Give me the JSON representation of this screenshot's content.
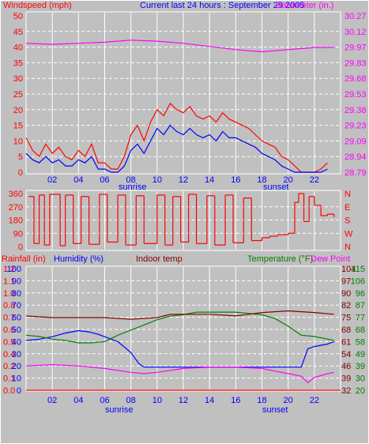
{
  "chart_data": [
    {
      "type": "line",
      "header": {
        "title": "Current last 24 hours : September 29 2005",
        "left_label": "Windspeed (mph)",
        "right_label": "Barometer (in.)"
      },
      "x_ticks": [
        "02",
        "04",
        "06",
        "08",
        "10",
        "12",
        "14",
        "16",
        "18",
        "20",
        "22"
      ],
      "x_range": [
        0,
        24
      ],
      "sunrise_label": "sunrise",
      "sunset_label": "sunset",
      "left_axis": {
        "ticks": [
          "0",
          "5",
          "10",
          "15",
          "20",
          "25",
          "30",
          "35",
          "40",
          "45",
          "50"
        ],
        "range": [
          0,
          50
        ]
      },
      "right_axis": {
        "ticks": [
          "28.79",
          "28.94",
          "29.09",
          "29.23",
          "29.38",
          "29.53",
          "29.68",
          "29.83",
          "29.97",
          "30.12",
          "30.27"
        ],
        "range": [
          28.79,
          30.27
        ]
      },
      "series": [
        {
          "kind": "wind_gust",
          "color": "#ff0000",
          "x": [
            0,
            0.5,
            1,
            1.5,
            2,
            2.5,
            3,
            3.5,
            4,
            4.5,
            5,
            5.5,
            6,
            6.5,
            7,
            7.5,
            8,
            8.5,
            9,
            9.5,
            10,
            10.5,
            11,
            11.5,
            12,
            12.5,
            13,
            13.5,
            14,
            14.5,
            15,
            15.5,
            16,
            16.5,
            17,
            17.5,
            18,
            18.5,
            19,
            19.5,
            20,
            20.5,
            21,
            21.5,
            22,
            22.5,
            23
          ],
          "y": [
            11,
            7,
            5,
            9,
            6,
            8,
            5,
            4,
            7,
            5,
            9,
            3,
            3,
            1,
            1,
            5,
            12,
            15,
            10,
            16,
            20,
            18,
            22,
            20,
            19,
            21,
            18,
            17,
            18,
            16,
            19,
            17,
            16,
            15,
            14,
            12,
            10,
            9,
            8,
            5,
            4,
            2,
            0,
            0,
            0,
            1,
            3
          ]
        },
        {
          "kind": "wind_avg",
          "color": "#0000ff",
          "x": [
            0,
            0.5,
            1,
            1.5,
            2,
            2.5,
            3,
            3.5,
            4,
            4.5,
            5,
            5.5,
            6,
            6.5,
            7,
            7.5,
            8,
            8.5,
            9,
            9.5,
            10,
            10.5,
            11,
            11.5,
            12,
            12.5,
            13,
            13.5,
            14,
            14.5,
            15,
            15.5,
            16,
            16.5,
            17,
            17.5,
            18,
            18.5,
            19,
            19.5,
            20,
            20.5,
            21,
            21.5,
            22,
            22.5,
            23
          ],
          "y": [
            6,
            4,
            3,
            5,
            3,
            4,
            2,
            2,
            4,
            3,
            5,
            1,
            1,
            0,
            0,
            2,
            7,
            9,
            6,
            10,
            14,
            12,
            15,
            13,
            12,
            14,
            12,
            11,
            12,
            10,
            13,
            11,
            11,
            10,
            9,
            8,
            6,
            5,
            4,
            2,
            1,
            0,
            0,
            0,
            0,
            0,
            1
          ]
        },
        {
          "kind": "barometer",
          "color": "#ff00ff",
          "x": [
            0,
            2,
            4,
            6,
            8,
            10,
            12,
            14,
            16,
            18,
            20,
            22,
            23.5
          ],
          "y": [
            30.01,
            30.0,
            30.01,
            30.02,
            30.04,
            30.03,
            30.01,
            29.98,
            29.95,
            29.93,
            29.95,
            29.97,
            29.97
          ]
        }
      ]
    },
    {
      "type": "line",
      "kind": "wind_direction",
      "left_axis": {
        "ticks": [
          "0",
          "90",
          "180",
          "270",
          "360"
        ],
        "range": [
          0,
          360
        ]
      },
      "right_axis": {
        "ticks": [
          "N",
          "W",
          "S",
          "E",
          "N"
        ]
      },
      "x_range": [
        0,
        24
      ],
      "color": "#ff0000",
      "x": [
        0.2,
        0.6,
        1,
        1.4,
        1.8,
        2.6,
        3,
        3.6,
        4.2,
        4.8,
        5.6,
        6.2,
        7,
        7.6,
        8.4,
        9,
        10,
        10.6,
        11.2,
        11.8,
        12.4,
        13,
        13.8,
        14.4,
        15.2,
        15.8,
        16.6,
        17.2,
        18,
        18.6,
        19.2,
        20,
        20.5,
        20.8,
        21.2,
        21.6,
        22,
        22.5,
        23,
        23.5
      ],
      "y": [
        340,
        20,
        350,
        10,
        355,
        5,
        350,
        20,
        340,
        15,
        355,
        30,
        350,
        10,
        345,
        20,
        350,
        10,
        340,
        30,
        355,
        20,
        345,
        10,
        350,
        25,
        330,
        40,
        60,
        70,
        80,
        90,
        300,
        360,
        170,
        340,
        280,
        210,
        220,
        200
      ]
    },
    {
      "type": "line",
      "header": {
        "rain_label": "Rainfall (in)",
        "humidity_label": "Humidity (%)",
        "indoor_label": "Indoor temp",
        "temp_label": "Temperature (°F)",
        "dew_label": "Dew Point"
      },
      "x_ticks": [
        "02",
        "04",
        "06",
        "08",
        "10",
        "12",
        "14",
        "16",
        "18",
        "20",
        "22"
      ],
      "x_range": [
        0,
        24
      ],
      "sunrise_label": "sunrise",
      "sunset_label": "sunset",
      "rain_axis": {
        "ticks": [
          "0.0",
          "0.1",
          "0.2",
          "0.4",
          "0.5",
          "0.6",
          "0.7",
          "0.8",
          "1.0",
          "1.1",
          "1.2"
        ],
        "range": [
          0,
          1.2
        ]
      },
      "humidity_axis": {
        "ticks": [
          "0",
          "10",
          "20",
          "30",
          "40",
          "50",
          "60",
          "70",
          "80",
          "90",
          "100"
        ],
        "range": [
          0,
          100
        ]
      },
      "indoor_axis": {
        "ticks": [
          "32",
          "39",
          "46",
          "54",
          "61",
          "68",
          "75",
          "82",
          "90",
          "97",
          "104"
        ],
        "range": [
          32,
          104
        ]
      },
      "temp_axis": {
        "ticks": [
          "20",
          "30",
          "39",
          "49",
          "58",
          "68",
          "77",
          "87",
          "96",
          "106",
          "115"
        ],
        "range": [
          20,
          115
        ]
      },
      "series": [
        {
          "kind": "humidity",
          "color": "#0000ff",
          "x": [
            0,
            1,
            2,
            3,
            4,
            4.8,
            5.5,
            6,
            7,
            8,
            8.6,
            9,
            10,
            12,
            14,
            16,
            18,
            20,
            21,
            21.5,
            22,
            23,
            23.5
          ],
          "y": [
            41,
            42,
            44,
            47,
            49,
            48,
            46,
            44,
            40,
            31,
            22,
            19,
            19,
            19,
            19,
            19,
            19,
            19,
            19,
            34,
            36,
            38,
            40
          ]
        },
        {
          "kind": "temperature",
          "color": "#008000",
          "x": [
            0,
            1,
            2,
            3,
            4,
            5,
            6,
            7,
            8,
            9,
            10,
            11,
            12,
            13,
            14,
            15,
            16,
            17,
            18,
            19,
            20,
            21,
            22,
            23,
            23.5
          ],
          "y": [
            63,
            62,
            60,
            59,
            57,
            57,
            58,
            63,
            67,
            71,
            75,
            78,
            79,
            81,
            81,
            81,
            81,
            80,
            79,
            76,
            70,
            63,
            62,
            60,
            59
          ]
        },
        {
          "kind": "dew_point",
          "color": "#ff00ff",
          "x": [
            0,
            2,
            4,
            6,
            8,
            9,
            10,
            12,
            14,
            16,
            18,
            19,
            20,
            21,
            21.5,
            22,
            23,
            23.5
          ],
          "y": [
            39,
            40,
            39,
            37,
            34,
            33,
            34,
            37,
            38,
            38,
            37,
            35,
            33,
            31,
            26,
            30,
            33,
            34
          ]
        },
        {
          "kind": "indoor_temp",
          "color": "#800000",
          "x": [
            0,
            2,
            4,
            6,
            8,
            10,
            11,
            12,
            14,
            16,
            17,
            18,
            20,
            22,
            23.5
          ],
          "y": [
            76,
            75,
            75,
            75,
            74,
            75,
            77,
            77,
            77,
            76,
            77,
            78,
            79,
            78,
            77
          ]
        },
        {
          "kind": "rainfall",
          "color": "#ff0000",
          "x": [
            0,
            24
          ],
          "y": [
            0,
            0
          ]
        }
      ]
    }
  ]
}
